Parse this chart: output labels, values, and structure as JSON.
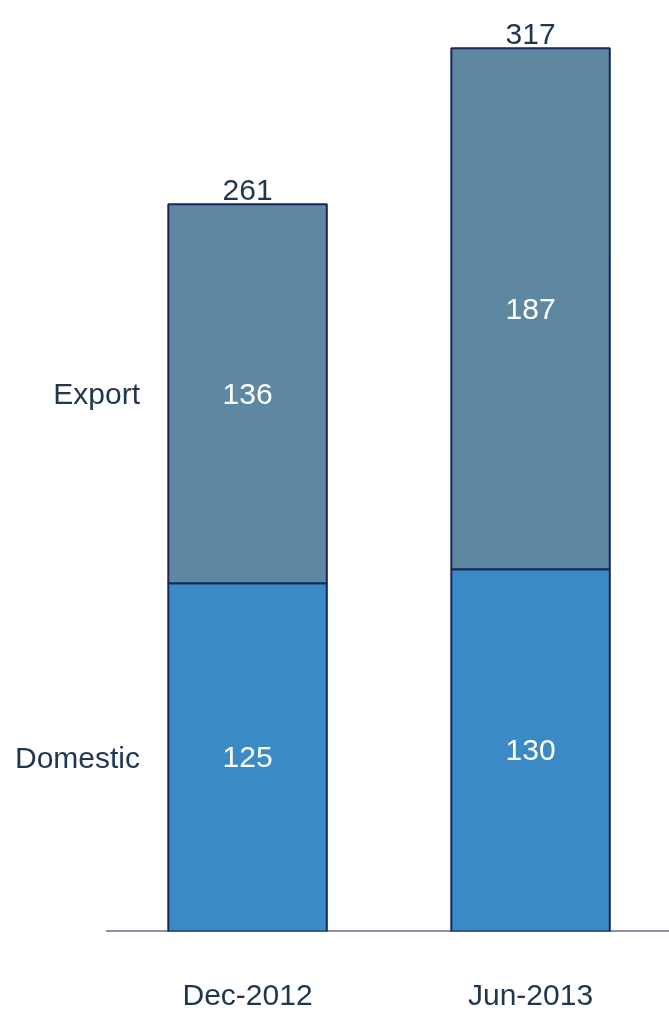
{
  "chart_data": {
    "type": "bar",
    "stacked": true,
    "categories": [
      "Dec-2012",
      "Jun-2013"
    ],
    "series": [
      {
        "name": "Domestic",
        "color": "#3a8ac6",
        "values": [
          125,
          130
        ]
      },
      {
        "name": "Export",
        "color": "#5e88a2",
        "values": [
          136,
          187
        ]
      }
    ],
    "totals": [
      "261",
      "317"
    ],
    "data_labels": true,
    "tick_labels": "x",
    "grid": false,
    "legend": false
  }
}
